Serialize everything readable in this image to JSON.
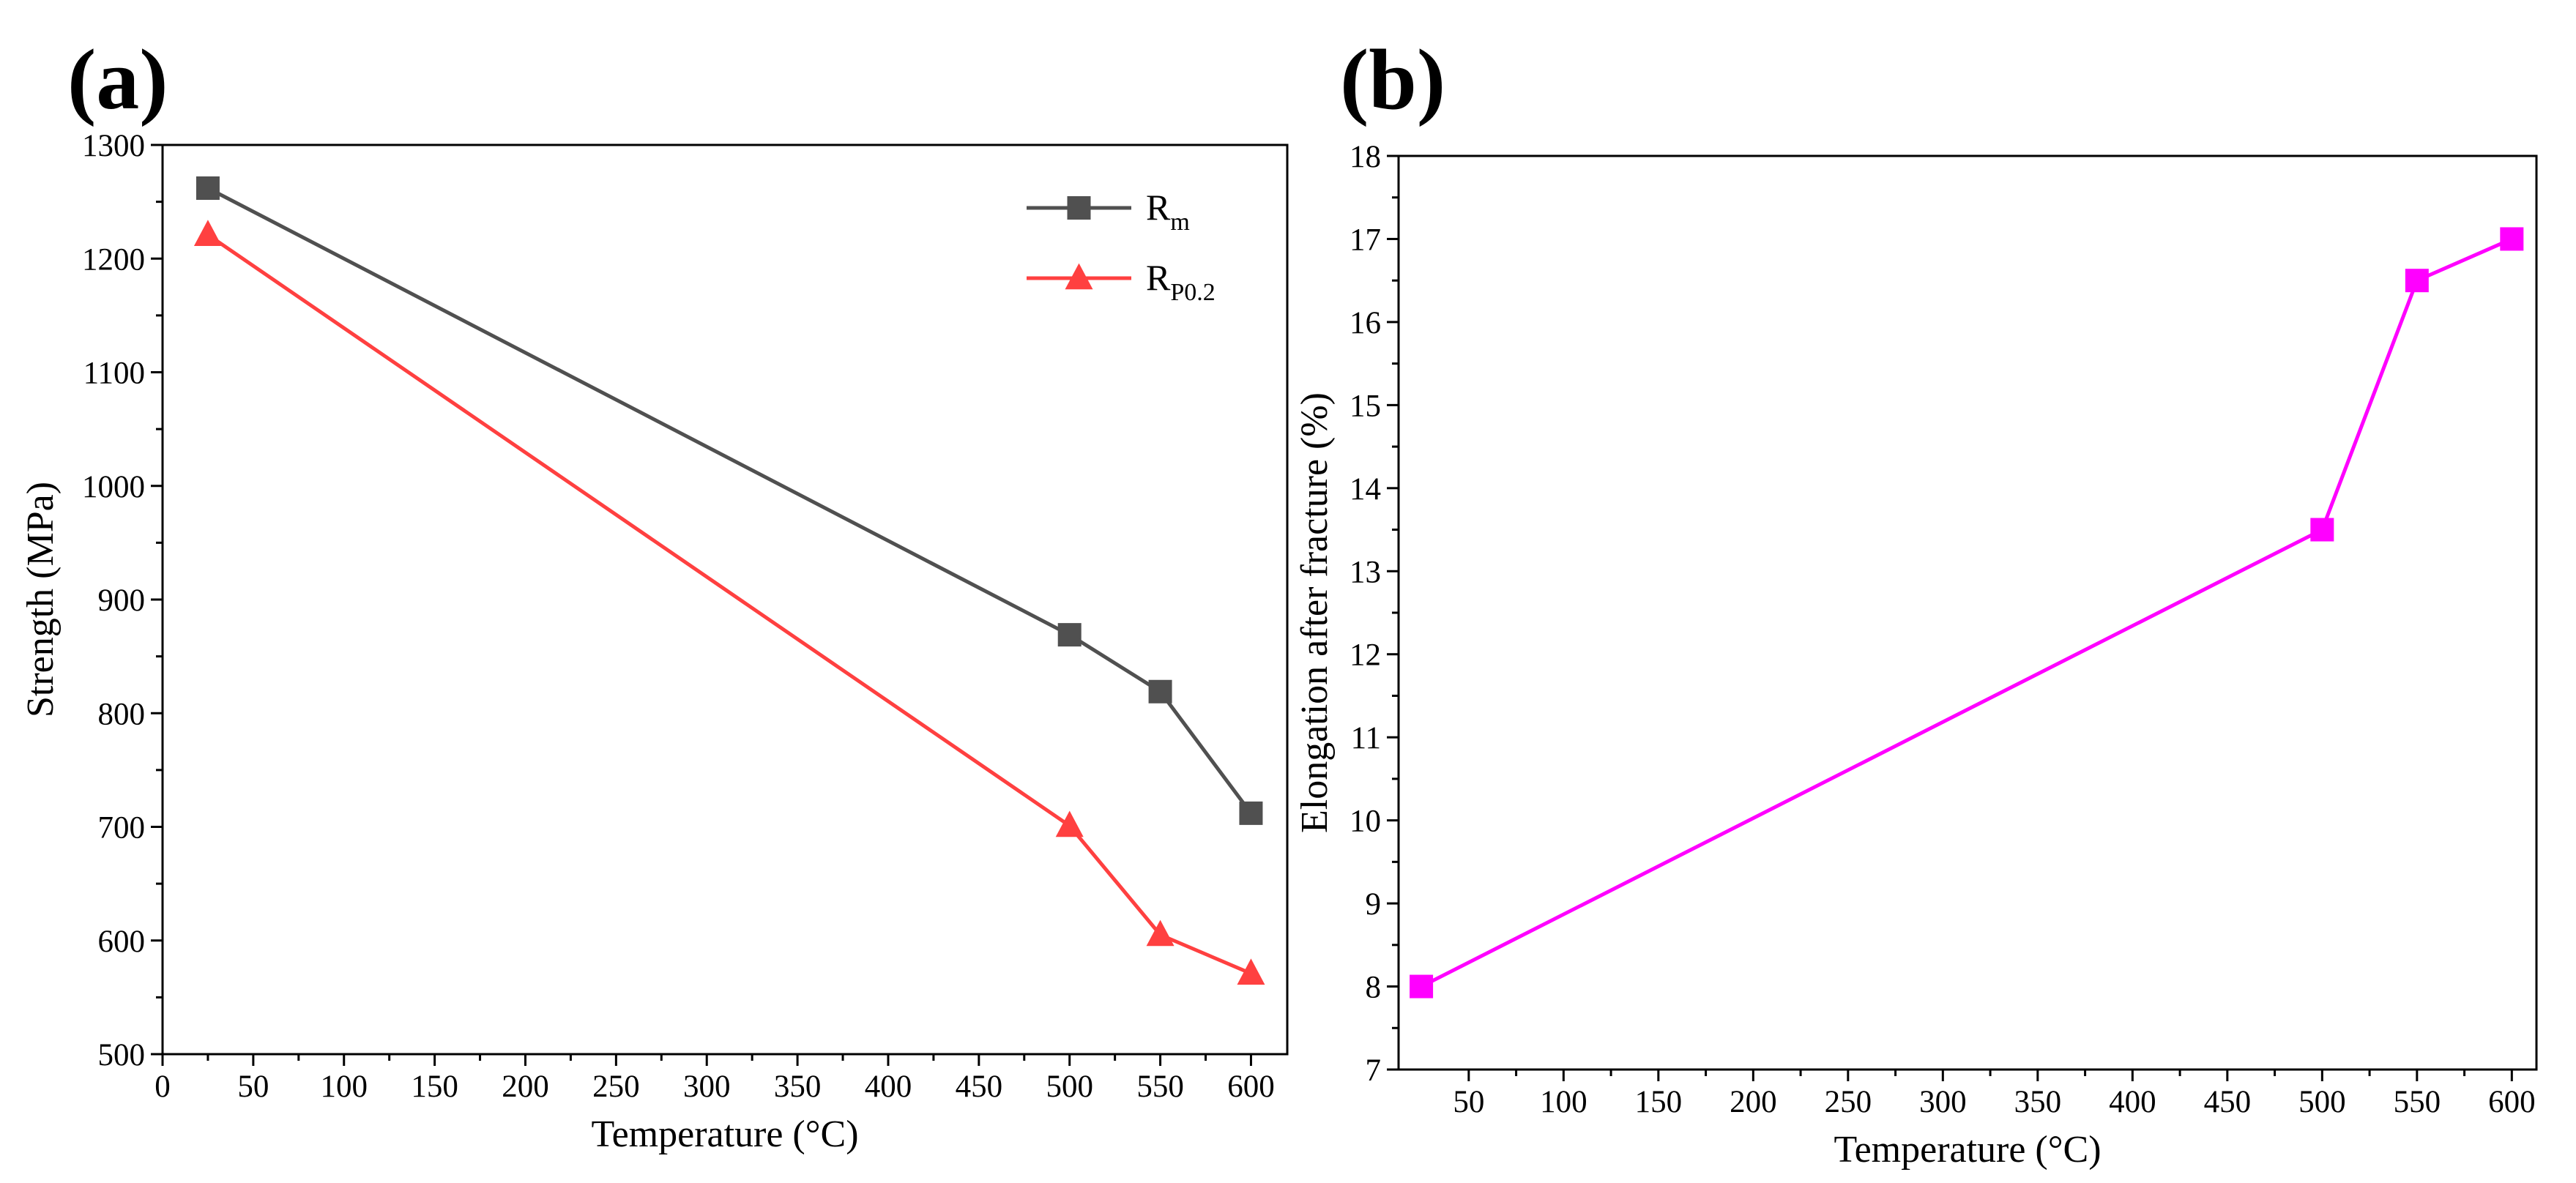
{
  "chart_data": [
    {
      "panel_label": "(a)",
      "type": "line",
      "xlabel": "Temperature (°C)",
      "ylabel": "Strength (MPa)",
      "xlim": [
        0,
        620
      ],
      "ylim": [
        500,
        1300
      ],
      "xticks": [
        0,
        50,
        100,
        150,
        200,
        250,
        300,
        350,
        400,
        450,
        500,
        550,
        600
      ],
      "yticks": [
        500,
        600,
        700,
        800,
        900,
        1000,
        1100,
        1200,
        1300
      ],
      "legend_position": "top-right",
      "series": [
        {
          "name": "Rm",
          "legend_main": "R",
          "legend_sub": "m",
          "color": "#505050",
          "marker": "square",
          "x": [
            25,
            500,
            550,
            600
          ],
          "values": [
            1262,
            869,
            819,
            712
          ]
        },
        {
          "name": "RP0.2",
          "legend_main": "R",
          "legend_sub": "P0.2",
          "color": "#ff4040",
          "marker": "triangle",
          "x": [
            25,
            500,
            550,
            600
          ],
          "values": [
            1221,
            701,
            605,
            571
          ]
        }
      ]
    },
    {
      "panel_label": "(b)",
      "type": "line",
      "xlabel": "Temperature (°C)",
      "ylabel": "Elongation after fracture (%)",
      "xlim": [
        13,
        613
      ],
      "ylim": [
        7,
        18
      ],
      "xticks": [
        50,
        100,
        150,
        200,
        250,
        300,
        350,
        400,
        450,
        500,
        550,
        600
      ],
      "yticks": [
        7,
        8,
        9,
        10,
        11,
        12,
        13,
        14,
        15,
        16,
        17,
        18
      ],
      "series": [
        {
          "name": "Elongation",
          "color": "#ff00ff",
          "marker": "square",
          "x": [
            25,
            500,
            550,
            600
          ],
          "values": [
            8,
            13.5,
            16.5,
            17
          ]
        }
      ]
    }
  ]
}
